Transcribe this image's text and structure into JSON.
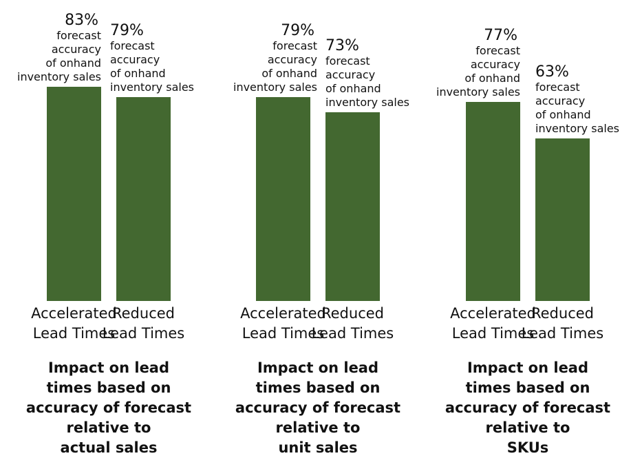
{
  "chart_data": [
    {
      "type": "bar",
      "title": "Impact on lead\ntimes based on\naccuracy of forecast\nrelative to\nactual sales",
      "categories": [
        "Accelerated\nLead Times",
        "Reduced\nLead Times"
      ],
      "values": [
        83,
        79
      ],
      "value_labels": [
        "83%",
        "79%"
      ],
      "annotation": "forecast\naccuracy\nof onhand\ninventory sales",
      "color": "#436830",
      "ylim": [
        0,
        100
      ]
    },
    {
      "type": "bar",
      "title": "Impact on lead\ntimes based on\naccuracy of forecast\nrelative to\nunit sales",
      "categories": [
        "Accelerated\nLead Times",
        "Reduced\nLead Times"
      ],
      "values": [
        79,
        73
      ],
      "value_labels": [
        "79%",
        "73%"
      ],
      "annotation": "forecast\naccuracy\nof onhand\ninventory sales",
      "color": "#436830",
      "ylim": [
        0,
        100
      ]
    },
    {
      "type": "bar",
      "title": "Impact on lead\ntimes based on\naccuracy of forecast\nrelative to\nSKUs",
      "categories": [
        "Accelerated\nLead Times",
        "Reduced\nLead Times"
      ],
      "values": [
        77,
        63
      ],
      "value_labels": [
        "77%",
        "63%"
      ],
      "annotation": "forecast\naccuracy\nof onhand\ninventory sales",
      "color": "#436830",
      "ylim": [
        0,
        100
      ]
    }
  ]
}
